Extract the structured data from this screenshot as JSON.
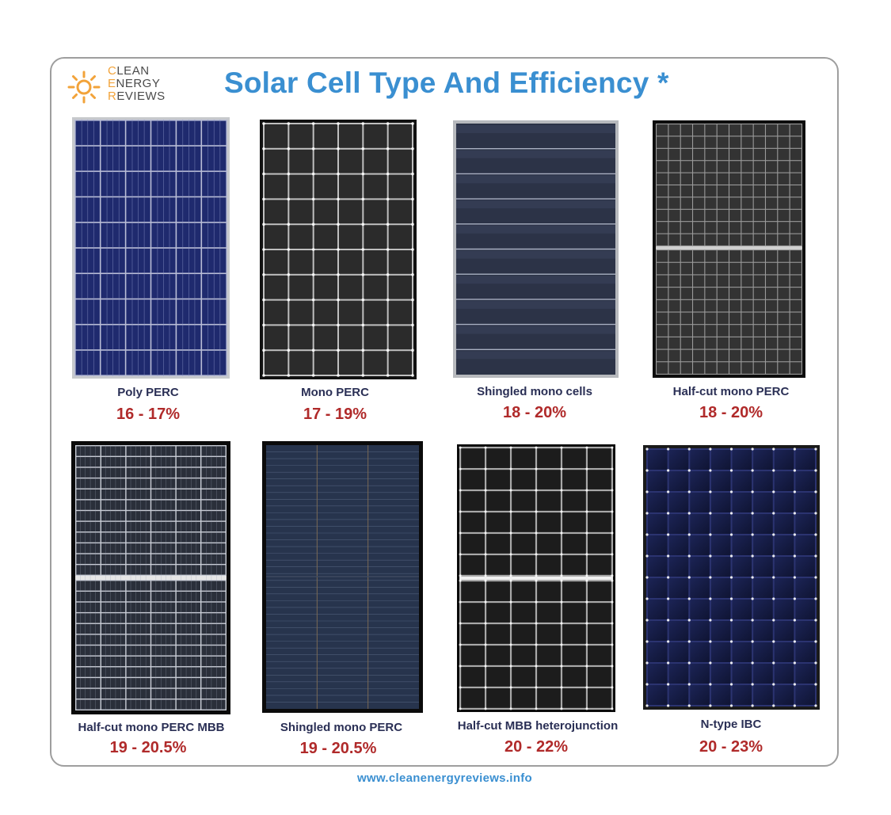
{
  "logo": {
    "lines": [
      {
        "first": "C",
        "rest": "LEAN"
      },
      {
        "first": "E",
        "rest": "NERGY"
      },
      {
        "first": "R",
        "rest": "EVIEWS"
      }
    ]
  },
  "title": "Solar Cell Type And Efficiency *",
  "panels": [
    {
      "name": "Poly PERC",
      "efficiency": "16 - 17%"
    },
    {
      "name": "Mono PERC",
      "efficiency": "17 - 19%"
    },
    {
      "name": "Shingled  mono cells",
      "efficiency": "18 - 20%"
    },
    {
      "name": "Half-cut mono PERC",
      "efficiency": "18 - 20%"
    },
    {
      "name": "Half-cut mono PERC MBB",
      "efficiency": "19 - 20.5%"
    },
    {
      "name": "Shingled mono PERC",
      "efficiency": "19 - 20.5%"
    },
    {
      "name": "Half-cut MBB heterojunction",
      "efficiency": "20 - 22%"
    },
    {
      "name": "N-type IBC",
      "efficiency": "20 - 23%"
    }
  ],
  "footer": "www.cleanenergyreviews.info",
  "colors": {
    "title": "#3a8fd1",
    "label": "#2a2f55",
    "efficiency": "#b02a2a",
    "logo_accent": "#f2a33a"
  }
}
